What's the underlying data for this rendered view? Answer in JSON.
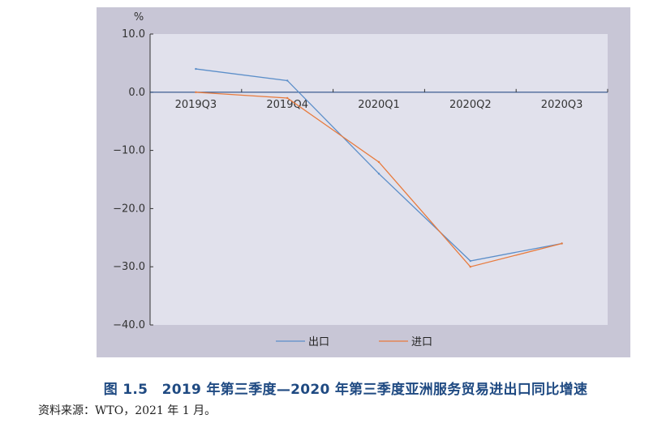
{
  "chart_data": {
    "type": "line",
    "unit_label": "%",
    "categories": [
      "2019Q3",
      "2019Q4",
      "2020Q1",
      "2020Q2",
      "2020Q3"
    ],
    "ylim": [
      -40,
      10
    ],
    "yticks": [
      "10.0",
      "0.0",
      "−10.0",
      "−20.0",
      "−30.0",
      "−40.0"
    ],
    "ytick_values": [
      10,
      0,
      -10,
      -20,
      -30,
      -40
    ],
    "series": [
      {
        "name": "出口",
        "color": "#5b8ec9",
        "values": [
          4.0,
          2.0,
          -14.0,
          -29.0,
          -26.0
        ]
      },
      {
        "name": "进口",
        "color": "#e87a3c",
        "values": [
          0.0,
          -1.0,
          -12.0,
          -30.0,
          -26.0
        ]
      }
    ],
    "legend_position": "bottom"
  },
  "caption": "图 1.5　2019 年第三季度—2020 年第三季度亚洲服务贸易进出口同比增速",
  "source": "资料来源：WTO，2021 年 1 月。",
  "colors": {
    "outer_bg": "#c8c6d6",
    "plot_bg": "#e1e1ec",
    "axis": "#333333",
    "caption": "#1f4a82"
  }
}
